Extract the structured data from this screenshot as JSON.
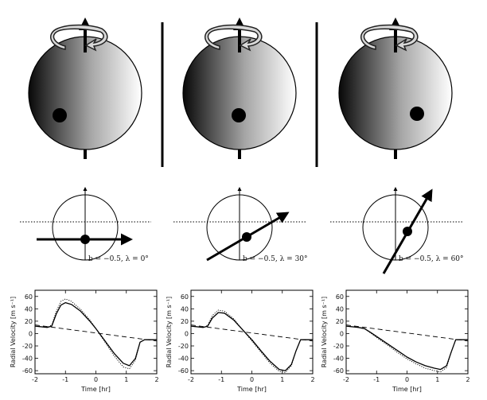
{
  "panels": [
    {
      "annotation": "b = −0.5, λ = 0°",
      "lambda_deg": 0,
      "b": -0.5
    },
    {
      "annotation": "b = −0.5, λ = 30°",
      "lambda_deg": 30,
      "b": -0.5
    },
    {
      "annotation": "b = −0.5, λ = 60°",
      "lambda_deg": 60,
      "b": -0.5
    }
  ],
  "chart_data": [
    {
      "type": "line",
      "xlabel": "Time [hr]",
      "ylabel": "Radial Velocity [m s⁻¹]",
      "xlim": [
        -2,
        2
      ],
      "ylim": [
        -65,
        70
      ],
      "xticks": [
        -2,
        -1,
        0,
        1,
        2
      ],
      "yticks": [
        -60,
        -40,
        -20,
        0,
        20,
        40,
        60
      ],
      "series": [
        {
          "style": "solid",
          "x": [
            -2,
            -1.6,
            -1.45,
            -1.3,
            -1.15,
            -1.0,
            -0.8,
            -0.5,
            -0.2,
            0.0,
            0.3,
            0.6,
            0.9,
            1.1,
            1.3,
            1.45,
            1.6,
            2.0
          ],
          "y": [
            12,
            10,
            12,
            32,
            46,
            50,
            47,
            36,
            20,
            8,
            -12,
            -32,
            -48,
            -52,
            -40,
            -14,
            -10,
            -10
          ]
        },
        {
          "style": "dotted",
          "x": [
            -2,
            -1.6,
            -1.45,
            -1.3,
            -1.15,
            -1.0,
            -0.8,
            -0.5,
            -0.2,
            0.0,
            0.3,
            0.6,
            0.9,
            1.1,
            1.3,
            1.45,
            1.6,
            2.0
          ],
          "y": [
            12,
            10,
            14,
            36,
            52,
            56,
            52,
            39,
            22,
            8,
            -14,
            -36,
            -54,
            -57,
            -43,
            -14,
            -10,
            -10
          ]
        },
        {
          "style": "dashed",
          "x": [
            -2,
            2
          ],
          "y": [
            14,
            -12
          ]
        }
      ]
    },
    {
      "type": "line",
      "xlabel": "Time [hr]",
      "ylabel": "Radial Velocity [m s⁻¹]",
      "xlim": [
        -2,
        2
      ],
      "ylim": [
        -65,
        70
      ],
      "xticks": [
        -2,
        -1,
        0,
        1,
        2
      ],
      "yticks": [
        -60,
        -40,
        -20,
        0,
        20,
        40,
        60
      ],
      "series": [
        {
          "style": "solid",
          "x": [
            -2,
            -1.6,
            -1.45,
            -1.3,
            -1.1,
            -0.9,
            -0.6,
            -0.3,
            0.0,
            0.3,
            0.6,
            0.9,
            1.1,
            1.3,
            1.45,
            1.6,
            2.0
          ],
          "y": [
            12,
            10,
            12,
            25,
            34,
            33,
            22,
            6,
            -10,
            -28,
            -45,
            -58,
            -60,
            -50,
            -28,
            -10,
            -10
          ]
        },
        {
          "style": "dotted",
          "x": [
            -2,
            -1.6,
            -1.45,
            -1.3,
            -1.1,
            -0.9,
            -0.6,
            -0.3,
            0.0,
            0.3,
            0.6,
            0.9,
            1.1,
            1.3,
            1.45,
            1.6,
            2.0
          ],
          "y": [
            12,
            10,
            13,
            29,
            38,
            36,
            24,
            6,
            -12,
            -30,
            -48,
            -61,
            -63,
            -52,
            -28,
            -10,
            -10
          ]
        },
        {
          "style": "dashed",
          "x": [
            -2,
            2
          ],
          "y": [
            14,
            -12
          ]
        }
      ]
    },
    {
      "type": "line",
      "xlabel": "Time [hr]",
      "ylabel": "Radial Velocity [m s⁻¹]",
      "xlim": [
        -2,
        2
      ],
      "ylim": [
        -65,
        70
      ],
      "xticks": [
        -2,
        -1,
        0,
        1,
        2
      ],
      "yticks": [
        -60,
        -40,
        -20,
        0,
        20,
        40,
        60
      ],
      "series": [
        {
          "style": "solid",
          "x": [
            -2,
            -1.6,
            -1.4,
            -1.2,
            -0.9,
            -0.6,
            -0.3,
            0.0,
            0.3,
            0.6,
            0.9,
            1.1,
            1.3,
            1.45,
            1.6,
            2.0
          ],
          "y": [
            12,
            10,
            8,
            2,
            -8,
            -18,
            -28,
            -38,
            -46,
            -52,
            -56,
            -58,
            -52,
            -30,
            -10,
            -10
          ]
        },
        {
          "style": "dotted",
          "x": [
            -2,
            -1.6,
            -1.4,
            -1.2,
            -0.9,
            -0.6,
            -0.3,
            0.0,
            0.3,
            0.6,
            0.9,
            1.1,
            1.3,
            1.45,
            1.6,
            2.0
          ],
          "y": [
            12,
            10,
            8,
            1,
            -10,
            -20,
            -31,
            -41,
            -49,
            -56,
            -60,
            -62,
            -55,
            -30,
            -10,
            -10
          ]
        },
        {
          "style": "dashed",
          "x": [
            -2,
            2
          ],
          "y": [
            14,
            -12
          ]
        }
      ]
    }
  ]
}
